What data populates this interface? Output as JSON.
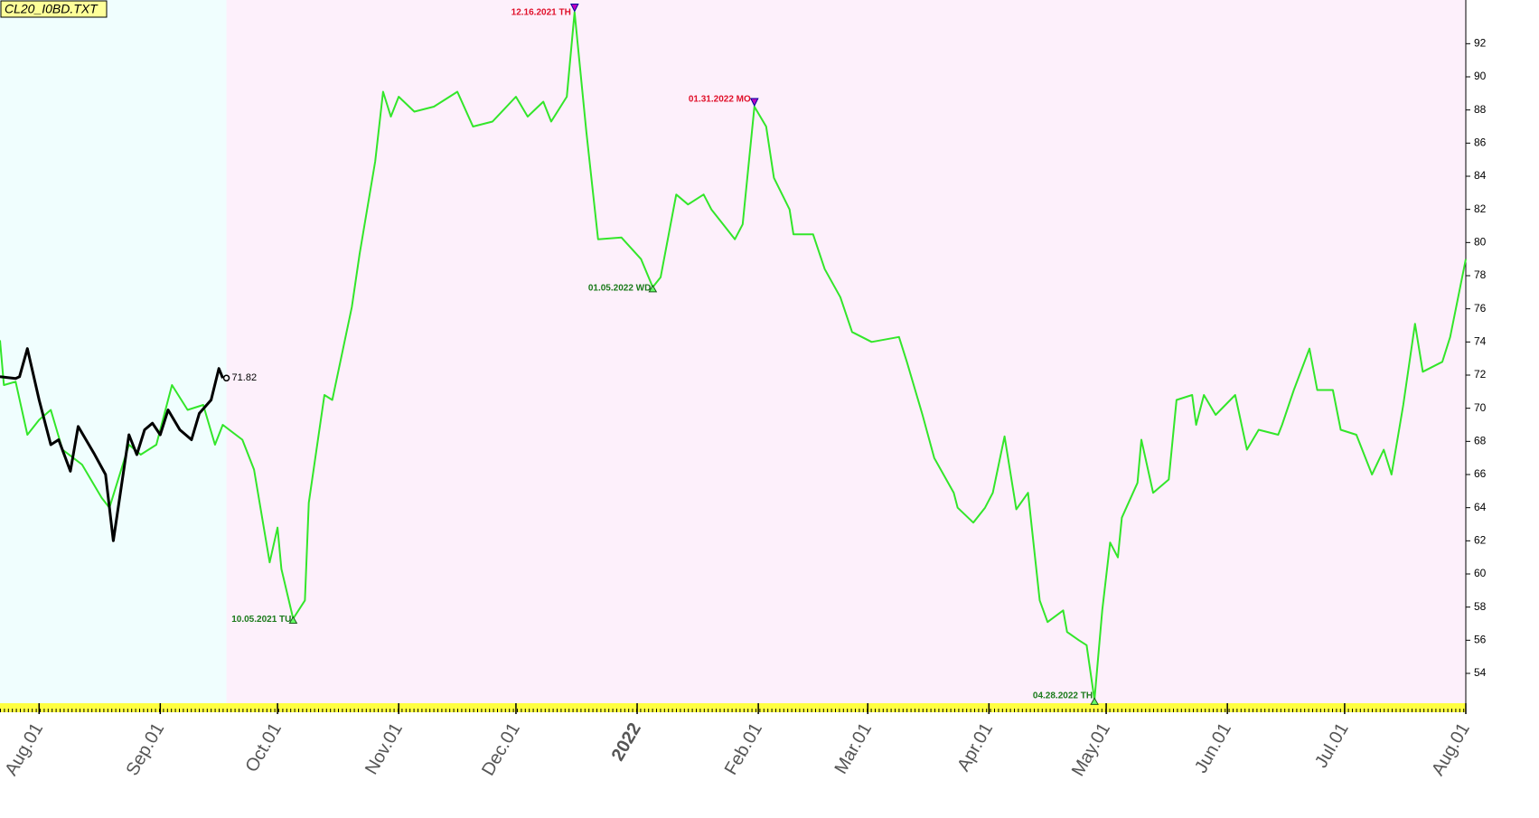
{
  "chart_data": {
    "type": "line",
    "title": "CL20_I0BD.TXT",
    "xlim": [
      "2021-07-22",
      "2022-08-01"
    ],
    "ylim": [
      52.2,
      94.2
    ],
    "yticks": [
      54,
      56,
      58,
      60,
      62,
      64,
      66,
      68,
      70,
      72,
      74,
      76,
      78,
      80,
      82,
      84,
      86,
      88,
      90,
      92
    ],
    "xticks": [
      {
        "value": "2021-08-01",
        "label": "Aug.01"
      },
      {
        "value": "2021-09-01",
        "label": "Sep.01"
      },
      {
        "value": "2021-10-01",
        "label": "Oct.01"
      },
      {
        "value": "2021-11-01",
        "label": "Nov.01"
      },
      {
        "value": "2021-12-01",
        "label": "Dec.01"
      },
      {
        "value": "2022-01-01",
        "label": "2022"
      },
      {
        "value": "2022-02-01",
        "label": "Feb.01"
      },
      {
        "value": "2022-03-01",
        "label": "Mar.01"
      },
      {
        "value": "2022-04-01",
        "label": "Apr.01"
      },
      {
        "value": "2022-05-01",
        "label": "May.01"
      },
      {
        "value": "2022-06-01",
        "label": "Jun.01"
      },
      {
        "value": "2022-07-01",
        "label": "Jul.01"
      },
      {
        "value": "2022-08-01",
        "label": "Aug.01"
      }
    ],
    "year_tick_color": "#8b0000",
    "past_background": "#f0fefe",
    "future_background": "#fdf0fb",
    "high_color": "#e0102a",
    "low_color": "#1a7a1a",
    "series": [
      {
        "color": "#33e62a",
        "x": [
          "2021-07-22",
          "2021-07-23",
          "2021-07-26",
          "2021-07-29",
          "2021-08-01",
          "2021-08-04",
          "2021-08-07",
          "2021-08-12",
          "2021-08-17",
          "2021-08-19",
          "2021-08-24",
          "2021-08-27",
          "2021-08-31",
          "2021-09-04",
          "2021-09-08",
          "2021-09-12",
          "2021-09-15",
          "2021-09-17",
          "2021-09-22",
          "2021-09-25",
          "2021-09-29",
          "2021-10-01",
          "2021-10-02",
          "2021-10-05",
          "2021-10-08",
          "2021-10-09",
          "2021-10-13",
          "2021-10-15",
          "2021-10-20",
          "2021-10-22",
          "2021-10-26",
          "2021-10-28",
          "2021-10-30",
          "2021-11-01",
          "2021-11-05",
          "2021-11-10",
          "2021-11-12",
          "2021-11-16",
          "2021-11-20",
          "2021-11-25",
          "2021-12-01",
          "2021-12-04",
          "2021-12-08",
          "2021-12-10",
          "2021-12-14",
          "2021-12-16",
          "2021-12-19",
          "2021-12-22",
          "2021-12-28",
          "2022-01-02",
          "2022-01-05",
          "2022-01-07",
          "2022-01-11",
          "2022-01-14",
          "2022-01-18",
          "2022-01-20",
          "2022-01-26",
          "2022-01-28",
          "2022-01-31",
          "2022-02-03",
          "2022-02-05",
          "2022-02-09",
          "2022-02-10",
          "2022-02-15",
          "2022-02-18",
          "2022-02-22",
          "2022-02-25",
          "2022-03-02",
          "2022-03-09",
          "2022-03-11",
          "2022-03-15",
          "2022-03-18",
          "2022-03-23",
          "2022-03-24",
          "2022-03-28",
          "2022-03-31",
          "2022-04-02",
          "2022-04-05",
          "2022-04-08",
          "2022-04-11",
          "2022-04-14",
          "2022-04-16",
          "2022-04-20",
          "2022-04-21",
          "2022-04-24",
          "2022-04-26",
          "2022-04-28",
          "2022-04-30",
          "2022-05-02",
          "2022-05-04",
          "2022-05-05",
          "2022-05-09",
          "2022-05-10",
          "2022-05-13",
          "2022-05-17",
          "2022-05-19",
          "2022-05-23",
          "2022-05-24",
          "2022-05-26",
          "2022-05-29",
          "2022-06-03",
          "2022-06-06",
          "2022-06-09",
          "2022-06-14",
          "2022-06-15",
          "2022-06-18",
          "2022-06-22",
          "2022-06-24",
          "2022-06-28",
          "2022-06-30",
          "2022-07-04",
          "2022-07-08",
          "2022-07-11",
          "2022-07-13",
          "2022-07-16",
          "2022-07-19",
          "2022-07-21",
          "2022-07-26",
          "2022-07-28",
          "2022-08-01"
        ],
        "values": [
          74.1,
          71.4,
          71.6,
          68.4,
          69.3,
          69.9,
          67.5,
          66.6,
          64.6,
          64.0,
          67.8,
          67.2,
          67.8,
          71.4,
          69.9,
          70.2,
          67.8,
          69.0,
          68.1,
          66.3,
          60.7,
          62.8,
          60.3,
          57.3,
          58.4,
          64.3,
          70.8,
          70.5,
          76.1,
          79.3,
          84.9,
          89.1,
          87.6,
          88.8,
          87.9,
          88.2,
          88.5,
          89.1,
          87.0,
          87.3,
          88.8,
          87.6,
          88.5,
          87.3,
          88.8,
          93.9,
          86.7,
          80.2,
          80.3,
          79.0,
          77.3,
          77.9,
          82.9,
          82.3,
          82.9,
          82.0,
          80.2,
          81.1,
          88.2,
          87.0,
          83.9,
          82.0,
          80.5,
          80.5,
          78.4,
          76.7,
          74.6,
          74.0,
          74.3,
          72.8,
          69.6,
          67.0,
          64.9,
          64.0,
          63.1,
          64.0,
          64.9,
          68.3,
          63.9,
          64.9,
          58.4,
          57.1,
          57.8,
          56.5,
          56.0,
          55.7,
          52.4,
          57.8,
          61.9,
          61.0,
          63.4,
          65.5,
          68.1,
          64.9,
          65.7,
          70.5,
          70.8,
          69.0,
          70.8,
          69.6,
          70.8,
          67.5,
          68.7,
          68.4,
          69.0,
          71.1,
          73.6,
          71.1,
          71.1,
          68.7,
          68.4,
          66.0,
          67.5,
          66.0,
          70.2,
          75.1,
          72.2,
          72.8,
          74.3,
          79.0
        ]
      },
      {
        "color": "#000000",
        "x": [
          "2021-07-22",
          "2021-07-26",
          "2021-07-27",
          "2021-07-29",
          "2021-08-01",
          "2021-08-04",
          "2021-08-06",
          "2021-08-09",
          "2021-08-11",
          "2021-08-15",
          "2021-08-18",
          "2021-08-20",
          "2021-08-24",
          "2021-08-26",
          "2021-08-28",
          "2021-08-30",
          "2021-09-01",
          "2021-09-03",
          "2021-09-06",
          "2021-09-09",
          "2021-09-11",
          "2021-09-14",
          "2021-09-16",
          "2021-09-17"
        ],
        "values": [
          71.9,
          71.8,
          71.9,
          73.6,
          70.5,
          67.8,
          68.1,
          66.2,
          68.9,
          67.3,
          66.0,
          62.0,
          68.4,
          67.2,
          68.7,
          69.1,
          68.4,
          69.9,
          68.7,
          68.1,
          69.7,
          70.5,
          72.4,
          71.82
        ]
      }
    ],
    "annotations": [
      {
        "text": "12.16.2021 TH",
        "x": "2021-12-16",
        "kind": "high"
      },
      {
        "text": "01.31.2022 MO",
        "x": "2022-01-31",
        "kind": "high"
      },
      {
        "text": "01.05.2022 WD",
        "x": "2022-01-05",
        "kind": "low"
      },
      {
        "text": "10.05.2021 TU",
        "x": "2021-10-05",
        "kind": "low"
      },
      {
        "text": "04.28.2022 TH",
        "x": "2022-04-28",
        "kind": "low"
      }
    ]
  }
}
